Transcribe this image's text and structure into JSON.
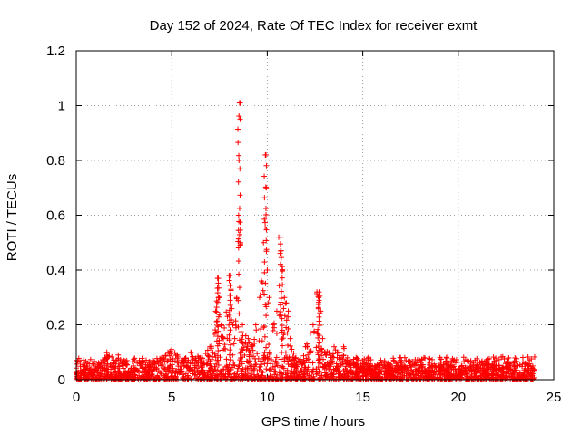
{
  "chart_data": {
    "type": "scatter",
    "title": "Day 152 of 2024, Rate Of TEC Index for receiver exmt",
    "xlabel": "GPS time / hours",
    "ylabel": "ROTI / TECUs",
    "xlim": [
      0,
      25
    ],
    "ylim": [
      0,
      1.2
    ],
    "xticks": [
      0,
      5,
      10,
      15,
      20,
      25
    ],
    "xtick_labels": [
      "0",
      "5",
      "10",
      "15",
      "20",
      "25"
    ],
    "yticks": [
      0,
      0.2,
      0.4,
      0.6,
      0.8,
      1.0,
      1.2
    ],
    "ytick_labels": [
      "0",
      "0.2",
      "0.4",
      "0.6",
      "0.8",
      "1",
      "1.2"
    ],
    "grid": true,
    "marker": "+",
    "series": [
      {
        "name": "ROTI",
        "color": "#ff0000",
        "baseline_range": [
          0,
          0.12
        ],
        "x": [
          0.0,
          0.5,
          1.0,
          1.5,
          1.6,
          2.0,
          2.2,
          2.5,
          3.0,
          3.5,
          4.0,
          4.5,
          4.8,
          5.0,
          5.3,
          5.5,
          6.0,
          6.5,
          7.0,
          7.3,
          7.4,
          7.5,
          7.6,
          7.7,
          8.0,
          8.1,
          8.2,
          8.3,
          8.4,
          8.5,
          8.52,
          8.55,
          8.58,
          8.6,
          8.7,
          9.0,
          9.2,
          9.4,
          9.6,
          9.8,
          9.9,
          9.95,
          10.0,
          10.1,
          10.3,
          10.5,
          10.6,
          10.7,
          10.8,
          10.9,
          11.0,
          11.1,
          11.2,
          11.5,
          12.0,
          12.4,
          12.6,
          12.7,
          12.8,
          12.9,
          13.0,
          13.5,
          13.8,
          14.0,
          14.2,
          14.5,
          15.0,
          15.5,
          16.0,
          16.5,
          17.0,
          17.5,
          18.0,
          18.2,
          18.5,
          19.0,
          19.5,
          20.0,
          20.5,
          20.8,
          21.0,
          21.5,
          22.0,
          22.5,
          23.0,
          23.5,
          23.9
        ],
        "y": [
          0.03,
          0.04,
          0.05,
          0.08,
          0.1,
          0.06,
          0.09,
          0.07,
          0.05,
          0.06,
          0.07,
          0.08,
          0.1,
          0.11,
          0.09,
          0.07,
          0.1,
          0.08,
          0.12,
          0.25,
          0.37,
          0.3,
          0.2,
          0.15,
          0.38,
          0.33,
          0.2,
          0.15,
          0.3,
          0.6,
          0.8,
          1.01,
          0.95,
          0.5,
          0.2,
          0.15,
          0.12,
          0.2,
          0.3,
          0.5,
          0.82,
          0.7,
          0.4,
          0.3,
          0.2,
          0.25,
          0.52,
          0.47,
          0.4,
          0.3,
          0.28,
          0.25,
          0.15,
          0.08,
          0.12,
          0.2,
          0.32,
          0.3,
          0.25,
          0.15,
          0.1,
          0.12,
          0.1,
          0.12,
          0.08,
          0.06,
          0.07,
          0.05,
          0.06,
          0.05,
          0.06,
          0.05,
          0.07,
          0.08,
          0.06,
          0.05,
          0.06,
          0.04,
          0.07,
          0.06,
          0.05,
          0.06,
          0.05,
          0.06,
          0.05,
          0.06,
          0.05
        ]
      }
    ]
  }
}
